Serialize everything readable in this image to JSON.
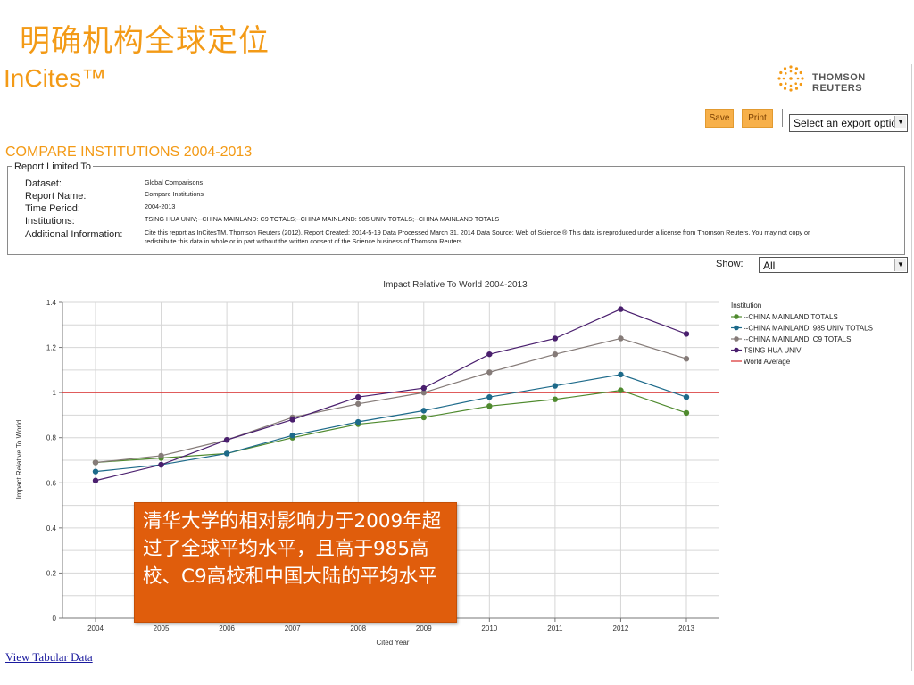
{
  "slide": {
    "title": "明确机构全球定位"
  },
  "header": {
    "brand": "InCites™",
    "company": "THOMSON REUTERS"
  },
  "toolbar": {
    "save_label": "Save",
    "print_label": "Print",
    "export_placeholder": "Select an export option"
  },
  "report": {
    "section_title": "COMPARE INSTITUTIONS 2004-2013",
    "box_legend": "Report Limited To",
    "rows": [
      {
        "label": "Dataset:",
        "value": "Global Comparisons"
      },
      {
        "label": "Report Name:",
        "value": "Compare Institutions"
      },
      {
        "label": "Time Period:",
        "value": "2004-2013"
      },
      {
        "label": "Institutions:",
        "value": "TSING HUA UNIV;--CHINA MAINLAND: C9 TOTALS;--CHINA MAINLAND: 985 UNIV TOTALS;--CHINA MAINLAND TOTALS"
      },
      {
        "label": "Additional Information:",
        "value": "Cite this report as InCitesTM, Thomson Reuters (2012). Report Created: 2014-5-19 Data Processed March 31, 2014 Data Source: Web of Science ® This data is reproduced under a license from Thomson Reuters. You may not copy or",
        "value2": "redistribute this data in whole or in part without the written consent of the Science business of Thomson Reuters"
      }
    ]
  },
  "filter": {
    "show_label": "Show:",
    "show_value": "All"
  },
  "chart_data": {
    "type": "line",
    "title": "Impact Relative To World 2004-2013",
    "xlabel": "Cited Year",
    "ylabel": "Impact Relative To World",
    "ylim": [
      0,
      1.4
    ],
    "yticks": [
      "0",
      "0.2",
      "0.4",
      "0.6",
      "0.8",
      "1",
      "1.2",
      "1.4"
    ],
    "x": [
      "2004",
      "2005",
      "2006",
      "2007",
      "2008",
      "2009",
      "2010",
      "2011",
      "2012",
      "2013"
    ],
    "grid": true,
    "legend_title": "Institution",
    "legend_position": "right",
    "series": [
      {
        "name": "--CHINA MAINLAND TOTALS",
        "color": "#4f8a2e",
        "values": [
          0.69,
          0.71,
          0.73,
          0.8,
          0.86,
          0.89,
          0.94,
          0.97,
          1.01,
          0.91
        ]
      },
      {
        "name": "--CHINA MAINLAND: 985 UNIV TOTALS",
        "color": "#1d6a8a",
        "values": [
          0.65,
          0.68,
          0.73,
          0.81,
          0.87,
          0.92,
          0.98,
          1.03,
          1.08,
          0.98
        ]
      },
      {
        "name": "--CHINA MAINLAND: C9 TOTALS",
        "color": "#857b78",
        "values": [
          0.69,
          0.72,
          0.79,
          0.89,
          0.95,
          1.0,
          1.09,
          1.17,
          1.24,
          1.15
        ]
      },
      {
        "name": "TSING HUA UNIV",
        "color": "#4a1f6e",
        "values": [
          0.61,
          0.68,
          0.79,
          0.88,
          0.98,
          1.02,
          1.17,
          1.24,
          1.37,
          1.26
        ]
      }
    ],
    "reference_line": {
      "name": "World Average",
      "value": 1.0,
      "color": "#d92a2a"
    }
  },
  "overlay": {
    "text": "清华大学的相对影响力于2009年超过了全球平均水平，且高于985高校、C9高校和中国大陆的平均水平"
  },
  "footer": {
    "link": "View Tabular Data"
  }
}
